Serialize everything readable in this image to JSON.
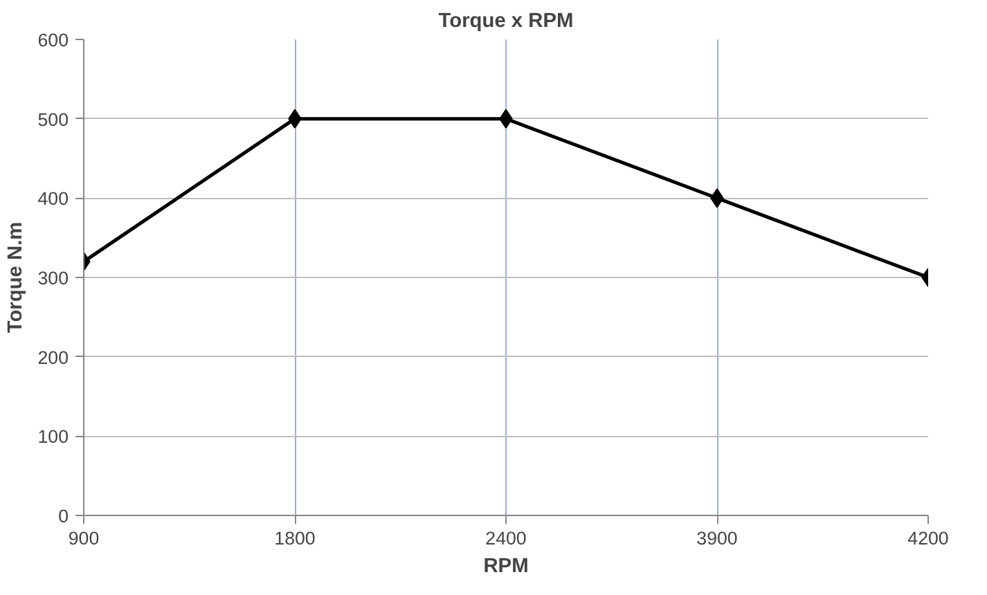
{
  "chart_data": {
    "type": "line",
    "title": "Torque x RPM",
    "xlabel": "RPM",
    "ylabel": "Torque N.m",
    "categories": [
      "900",
      "1800",
      "2400",
      "3900",
      "4200"
    ],
    "series": [
      {
        "color": "#000000",
        "values": [
          320,
          500,
          500,
          400,
          300
        ]
      }
    ],
    "ylim": [
      0,
      600
    ],
    "yticks": [
      0,
      100,
      200,
      300,
      400,
      500,
      600
    ],
    "grid": true,
    "marker": "diamond",
    "line_style": "solid"
  }
}
